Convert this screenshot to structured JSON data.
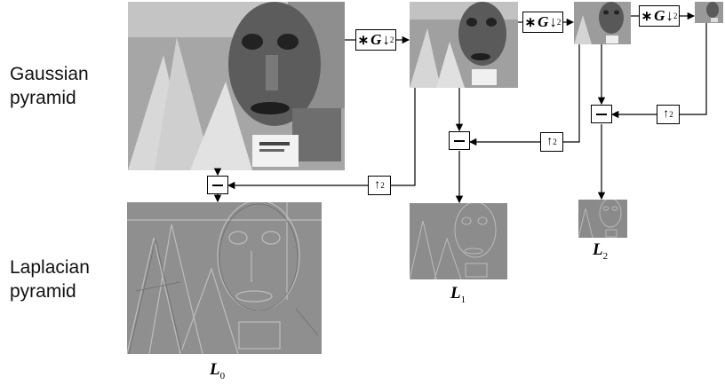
{
  "labels": {
    "gaussian_line1": "Gaussian",
    "gaussian_line2": "pyramid",
    "laplacian_line1": "Laplacian",
    "laplacian_line2": "pyramid"
  },
  "operators": {
    "blur_down": {
      "star": "∗",
      "letter": "G",
      "arrow": "↓",
      "factor": "2"
    },
    "up": {
      "arrow": "↑",
      "factor": "2"
    }
  },
  "laplacian_levels": [
    {
      "letter": "L",
      "index": "0"
    },
    {
      "letter": "L",
      "index": "1"
    },
    {
      "letter": "L",
      "index": "2"
    }
  ],
  "colors": {
    "wire": "#000000",
    "gauss_bg": "#9a9a9a",
    "lap_bg": "#8c8c8c"
  }
}
